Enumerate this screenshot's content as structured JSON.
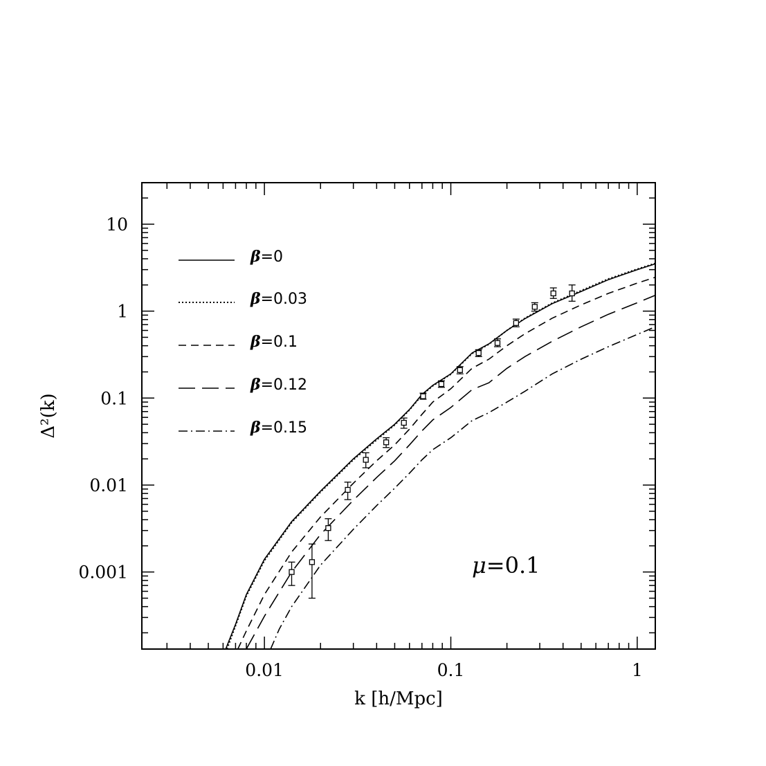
{
  "chart_data": {
    "type": "line",
    "xscale": "log",
    "yscale": "log",
    "xlim": [
      0.0022,
      1.25
    ],
    "ylim": [
      0.00013,
      30
    ],
    "xlabel": "k [h/Mpc]",
    "ylabel": "Δ²(k)",
    "xticks": [
      {
        "value": 0.01,
        "label": "0.01"
      },
      {
        "value": 0.1,
        "label": "0.1"
      },
      {
        "value": 1,
        "label": "1"
      }
    ],
    "yticks": [
      {
        "value": 0.001,
        "label": "0.001"
      },
      {
        "value": 0.01,
        "label": "0.01"
      },
      {
        "value": 0.1,
        "label": "0.1"
      },
      {
        "value": 1,
        "label": "1"
      },
      {
        "value": 10,
        "label": "10"
      }
    ],
    "annotation": {
      "symbol": "μ",
      "text": "=0.1"
    },
    "legend_position": "top-left",
    "series": [
      {
        "name": "β=0",
        "symbol": "β",
        "label_rest": "=0",
        "style": "solid",
        "points": [
          [
            0.0062,
            0.00013
          ],
          [
            0.007,
            0.00025
          ],
          [
            0.008,
            0.00055
          ],
          [
            0.01,
            0.0014
          ],
          [
            0.014,
            0.0038
          ],
          [
            0.02,
            0.0085
          ],
          [
            0.03,
            0.02
          ],
          [
            0.04,
            0.034
          ],
          [
            0.05,
            0.05
          ],
          [
            0.06,
            0.074
          ],
          [
            0.07,
            0.11
          ],
          [
            0.08,
            0.14
          ],
          [
            0.1,
            0.19
          ],
          [
            0.13,
            0.33
          ],
          [
            0.16,
            0.42
          ],
          [
            0.2,
            0.6
          ],
          [
            0.25,
            0.82
          ],
          [
            0.35,
            1.22
          ],
          [
            0.5,
            1.68
          ],
          [
            0.7,
            2.3
          ],
          [
            1,
            3.0
          ],
          [
            1.25,
            3.5
          ]
        ]
      },
      {
        "name": "β=0.03",
        "symbol": "β",
        "label_rest": "=0.03",
        "style": "dotted",
        "points": [
          [
            0.0063,
            0.00013
          ],
          [
            0.007,
            0.00024
          ],
          [
            0.008,
            0.00053
          ],
          [
            0.01,
            0.00135
          ],
          [
            0.014,
            0.0037
          ],
          [
            0.02,
            0.0083
          ],
          [
            0.03,
            0.0195
          ],
          [
            0.04,
            0.033
          ],
          [
            0.05,
            0.049
          ],
          [
            0.06,
            0.073
          ],
          [
            0.07,
            0.108
          ],
          [
            0.08,
            0.138
          ],
          [
            0.1,
            0.188
          ],
          [
            0.13,
            0.325
          ],
          [
            0.16,
            0.415
          ],
          [
            0.2,
            0.6
          ],
          [
            0.25,
            0.83
          ],
          [
            0.35,
            1.24
          ],
          [
            0.5,
            1.72
          ],
          [
            0.7,
            2.35
          ],
          [
            1,
            3.05
          ],
          [
            1.25,
            3.55
          ]
        ]
      },
      {
        "name": "β=0.1",
        "symbol": "β",
        "label_rest": "=0.1",
        "style": "dashed",
        "points": [
          [
            0.0072,
            0.00013
          ],
          [
            0.008,
            0.00021
          ],
          [
            0.01,
            0.00055
          ],
          [
            0.014,
            0.0017
          ],
          [
            0.02,
            0.0043
          ],
          [
            0.03,
            0.0105
          ],
          [
            0.04,
            0.019
          ],
          [
            0.05,
            0.029
          ],
          [
            0.06,
            0.044
          ],
          [
            0.07,
            0.065
          ],
          [
            0.08,
            0.09
          ],
          [
            0.1,
            0.128
          ],
          [
            0.13,
            0.22
          ],
          [
            0.16,
            0.28
          ],
          [
            0.2,
            0.4
          ],
          [
            0.25,
            0.55
          ],
          [
            0.35,
            0.83
          ],
          [
            0.5,
            1.18
          ],
          [
            0.7,
            1.6
          ],
          [
            1,
            2.1
          ],
          [
            1.25,
            2.45
          ]
        ]
      },
      {
        "name": "β=0.12",
        "symbol": "β",
        "label_rest": "=0.12",
        "style": "long-dashed",
        "points": [
          [
            0.008,
            0.00013
          ],
          [
            0.01,
            0.00031
          ],
          [
            0.014,
            0.001
          ],
          [
            0.02,
            0.0027
          ],
          [
            0.03,
            0.0067
          ],
          [
            0.04,
            0.0122
          ],
          [
            0.05,
            0.019
          ],
          [
            0.06,
            0.029
          ],
          [
            0.07,
            0.042
          ],
          [
            0.08,
            0.056
          ],
          [
            0.1,
            0.078
          ],
          [
            0.13,
            0.125
          ],
          [
            0.16,
            0.15
          ],
          [
            0.2,
            0.22
          ],
          [
            0.25,
            0.3
          ],
          [
            0.35,
            0.45
          ],
          [
            0.5,
            0.66
          ],
          [
            0.7,
            0.92
          ],
          [
            1,
            1.25
          ],
          [
            1.25,
            1.52
          ]
        ]
      },
      {
        "name": "β=0.15",
        "symbol": "β",
        "label_rest": "=0.15",
        "style": "dash-dot",
        "points": [
          [
            0.0108,
            0.00013
          ],
          [
            0.012,
            0.00022
          ],
          [
            0.014,
            0.0004
          ],
          [
            0.02,
            0.0012
          ],
          [
            0.03,
            0.0031
          ],
          [
            0.04,
            0.0058
          ],
          [
            0.05,
            0.0092
          ],
          [
            0.06,
            0.0137
          ],
          [
            0.07,
            0.0195
          ],
          [
            0.08,
            0.0255
          ],
          [
            0.1,
            0.035
          ],
          [
            0.13,
            0.055
          ],
          [
            0.16,
            0.068
          ],
          [
            0.2,
            0.09
          ],
          [
            0.25,
            0.12
          ],
          [
            0.35,
            0.19
          ],
          [
            0.5,
            0.28
          ],
          [
            0.7,
            0.39
          ],
          [
            1,
            0.54
          ],
          [
            1.25,
            0.66
          ]
        ]
      }
    ],
    "data_points": [
      {
        "k": 0.014,
        "y": 0.001,
        "lo": 0.0007,
        "hi": 0.0013
      },
      {
        "k": 0.018,
        "y": 0.0013,
        "lo": 0.0005,
        "hi": 0.0021
      },
      {
        "k": 0.022,
        "y": 0.0032,
        "lo": 0.0023,
        "hi": 0.0041
      },
      {
        "k": 0.028,
        "y": 0.0088,
        "lo": 0.0068,
        "hi": 0.0108
      },
      {
        "k": 0.035,
        "y": 0.0195,
        "lo": 0.0158,
        "hi": 0.0235
      },
      {
        "k": 0.045,
        "y": 0.031,
        "lo": 0.027,
        "hi": 0.035
      },
      {
        "k": 0.056,
        "y": 0.052,
        "lo": 0.045,
        "hi": 0.059
      },
      {
        "k": 0.071,
        "y": 0.105,
        "lo": 0.097,
        "hi": 0.114
      },
      {
        "k": 0.089,
        "y": 0.145,
        "lo": 0.133,
        "hi": 0.158
      },
      {
        "k": 0.112,
        "y": 0.21,
        "lo": 0.19,
        "hi": 0.23
      },
      {
        "k": 0.141,
        "y": 0.33,
        "lo": 0.3,
        "hi": 0.36
      },
      {
        "k": 0.178,
        "y": 0.43,
        "lo": 0.39,
        "hi": 0.48
      },
      {
        "k": 0.224,
        "y": 0.73,
        "lo": 0.66,
        "hi": 0.81
      },
      {
        "k": 0.282,
        "y": 1.12,
        "lo": 1.0,
        "hi": 1.25
      },
      {
        "k": 0.355,
        "y": 1.6,
        "lo": 1.4,
        "hi": 1.85
      },
      {
        "k": 0.447,
        "y": 1.6,
        "lo": 1.3,
        "hi": 2.0
      }
    ]
  }
}
